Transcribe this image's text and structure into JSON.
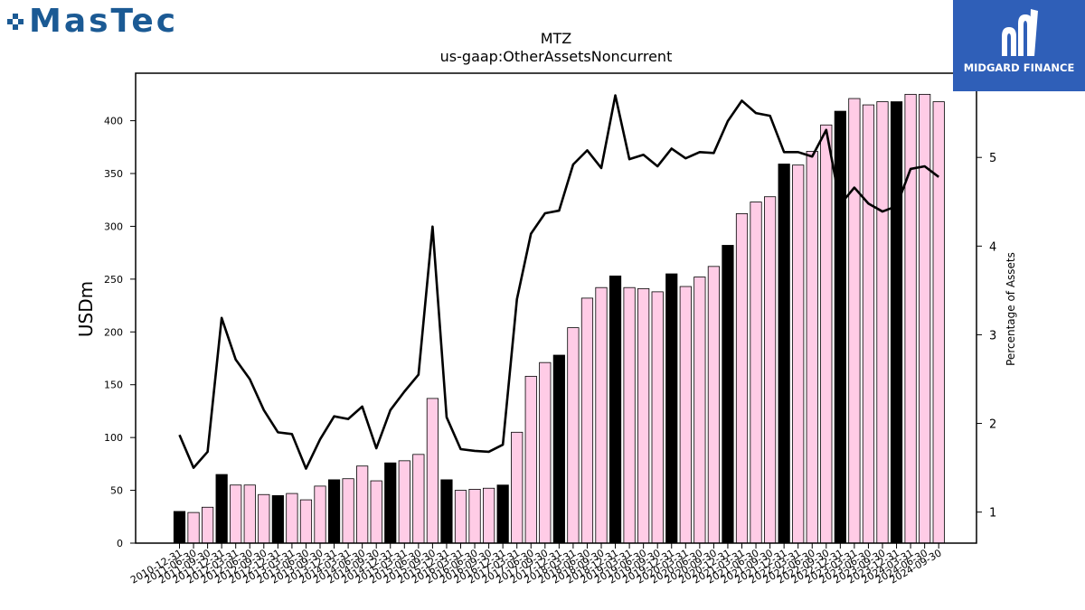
{
  "brand": {
    "name": "MasTec",
    "color": "#1b5a94"
  },
  "publisher": {
    "name": "MIDGARD FINANCE",
    "color": "#2f5fb8"
  },
  "chart_data": {
    "type": "bar",
    "title": "MTZ",
    "subtitle": "us-gaap:OtherAssetsNoncurrent",
    "ylabel": "USDm",
    "y2label": "Percentage of Assets",
    "ylim": [
      0,
      445
    ],
    "y2lim": [
      0.65,
      5.95
    ],
    "yticks": [
      0,
      50,
      100,
      150,
      200,
      250,
      300,
      350,
      400
    ],
    "y2ticks": [
      1,
      2,
      3,
      4,
      5
    ],
    "grid": false,
    "categories": [
      "2010-12-31",
      "2011-06-30",
      "2011-09-30",
      "2011-12-31",
      "2012-03-31",
      "2012-06-30",
      "2012-09-30",
      "2012-12-31",
      "2013-03-31",
      "2013-06-30",
      "2013-09-30",
      "2013-12-31",
      "2014-03-31",
      "2014-06-30",
      "2014-09-30",
      "2014-12-31",
      "2015-03-31",
      "2015-06-30",
      "2015-09-30",
      "2015-12-31",
      "2016-03-31",
      "2016-06-30",
      "2016-09-30",
      "2016-12-31",
      "2017-03-31",
      "2017-06-30",
      "2017-09-30",
      "2017-12-31",
      "2018-03-31",
      "2018-06-30",
      "2018-09-30",
      "2018-12-31",
      "2019-03-31",
      "2019-06-30",
      "2019-09-30",
      "2019-12-31",
      "2020-03-31",
      "2020-06-30",
      "2020-09-30",
      "2020-12-31",
      "2021-03-31",
      "2021-06-30",
      "2021-09-30",
      "2021-12-31",
      "2022-03-31",
      "2022-06-30",
      "2022-09-30",
      "2022-12-31",
      "2023-03-31",
      "2023-06-30",
      "2023-09-30",
      "2023-12-31",
      "2024-03-31",
      "2024-06-30",
      "2024-09-30"
    ],
    "bar_colors": {
      "fiscal_year_end": "#000000",
      "quarter": "#ffcce6",
      "edge": "#000000"
    },
    "series": [
      {
        "name": "Other Assets Noncurrent",
        "axis": "left",
        "values": [
          30,
          29,
          34,
          65,
          55,
          55,
          46,
          45,
          47,
          41,
          54,
          60,
          61,
          73,
          59,
          76,
          78,
          84,
          137,
          60,
          50,
          51,
          52,
          55,
          105,
          158,
          171,
          178,
          204,
          232,
          242,
          253,
          242,
          241,
          238,
          255,
          243,
          252,
          262,
          282,
          312,
          323,
          328,
          359,
          358,
          371,
          396,
          409,
          421,
          415,
          418,
          418,
          425,
          425,
          418
        ]
      },
      {
        "name": "Percentage of Assets",
        "axis": "right",
        "color": "#000000",
        "values": [
          1.87,
          1.5,
          1.68,
          3.19,
          2.72,
          2.5,
          2.15,
          1.9,
          1.88,
          1.49,
          1.82,
          2.08,
          2.05,
          2.19,
          1.72,
          2.15,
          2.36,
          2.55,
          4.22,
          2.07,
          1.71,
          1.69,
          1.68,
          1.76,
          3.4,
          4.14,
          4.37,
          4.4,
          4.92,
          5.08,
          4.88,
          5.7,
          4.98,
          5.03,
          4.9,
          5.1,
          4.99,
          5.06,
          5.05,
          5.41,
          5.64,
          5.5,
          5.47,
          5.06,
          5.06,
          5.01,
          5.31,
          4.47,
          4.66,
          4.48,
          4.39,
          4.45,
          4.87,
          4.9,
          4.78
        ]
      }
    ]
  }
}
